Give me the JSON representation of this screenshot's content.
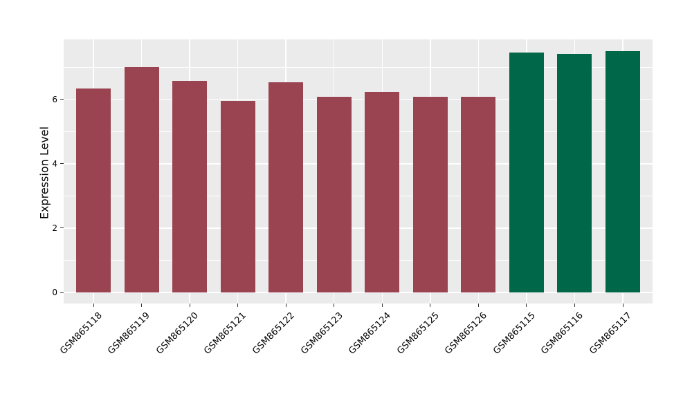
{
  "chart_data": {
    "type": "bar",
    "ylabel": "Expression Level",
    "categories": [
      "GSM865118",
      "GSM865119",
      "GSM865120",
      "GSM865121",
      "GSM865122",
      "GSM865123",
      "GSM865124",
      "GSM865125",
      "GSM865126",
      "GSM865115",
      "GSM865116",
      "GSM865117"
    ],
    "values": [
      6.33,
      7.0,
      6.58,
      5.96,
      6.52,
      6.07,
      6.23,
      6.07,
      6.07,
      7.46,
      7.41,
      7.5
    ],
    "bar_colors": [
      "#9a4452",
      "#9a4452",
      "#9a4452",
      "#9a4452",
      "#9a4452",
      "#9a4452",
      "#9a4452",
      "#9a4452",
      "#9a4452",
      "#006748",
      "#006748",
      "#006748"
    ],
    "groups": [
      {
        "name": "group-red",
        "color": "#9a4452",
        "categories": [
          "GSM865118",
          "GSM865119",
          "GSM865120",
          "GSM865121",
          "GSM865122",
          "GSM865123",
          "GSM865124",
          "GSM865125",
          "GSM865126"
        ]
      },
      {
        "name": "group-green",
        "color": "#006748",
        "categories": [
          "GSM865115",
          "GSM865116",
          "GSM865117"
        ]
      }
    ],
    "ylim": [
      -0.34,
      7.86
    ],
    "y_major_ticks": [
      0,
      2,
      4,
      6
    ],
    "y_minor_gridlines": [
      1,
      3,
      5,
      7
    ],
    "grid": "on",
    "legend": "none",
    "panel_background": "#ebebeb",
    "gridline_color": "#ffffff"
  }
}
